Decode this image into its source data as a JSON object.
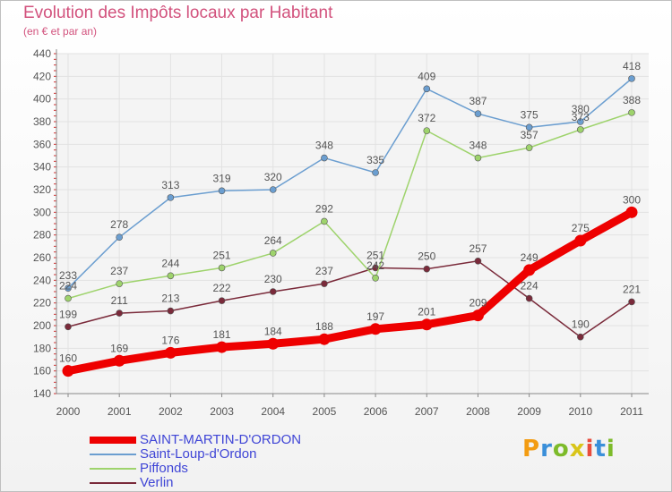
{
  "header": {
    "title": "Evolution des Impôts locaux par Habitant",
    "subtitle": "(en € et par an)"
  },
  "logo": {
    "letters": [
      "P",
      "r",
      "o",
      "x",
      "i",
      "t",
      "i"
    ],
    "colors": [
      "#f39c12",
      "#3a8fd9",
      "#7dbb2a",
      "#d9c51a",
      "#e84c3d",
      "#3a8fd9",
      "#7dbb2a"
    ]
  },
  "chart_data": {
    "type": "line",
    "title": "Evolution des Impôts locaux par Habitant",
    "subtitle": "(en € et par an)",
    "xlabel": "",
    "ylabel": "",
    "x": [
      "2000",
      "2001",
      "2002",
      "2003",
      "2004",
      "2005",
      "2006",
      "2007",
      "2008",
      "2009",
      "2010",
      "2011"
    ],
    "yticks": [
      140,
      160,
      180,
      200,
      220,
      240,
      260,
      280,
      300,
      320,
      340,
      360,
      380,
      400,
      420,
      440
    ],
    "ylim": [
      140,
      440
    ],
    "grid": true,
    "legend_position": "bottom-left",
    "series": [
      {
        "name": "SAINT-MARTIN-D'ORDON",
        "color": "#ee0000",
        "values": [
          160,
          169,
          176,
          181,
          184,
          188,
          197,
          201,
          209,
          249,
          275,
          300
        ],
        "labels": [
          "160",
          "169",
          "176",
          "181",
          "184",
          "188",
          "197",
          "201",
          "209",
          "249",
          "275",
          "300"
        ]
      },
      {
        "name": "Saint-Loup-d'Ordon",
        "color": "#6b9ed0",
        "values": [
          233,
          278,
          313,
          319,
          320,
          348,
          335,
          409,
          387,
          375,
          380,
          418
        ],
        "labels": [
          "233",
          "278",
          "313",
          "319",
          "320",
          "348",
          "335",
          "409",
          "387",
          "375",
          "380",
          "418"
        ]
      },
      {
        "name": "Piffonds",
        "color": "#9ed36c",
        "values": [
          224,
          237,
          244,
          251,
          264,
          292,
          242,
          372,
          348,
          357,
          373,
          388
        ],
        "labels": [
          "224",
          "237",
          "244",
          "251",
          "264",
          "292",
          "242",
          "372",
          "348",
          "357",
          "373",
          "388"
        ]
      },
      {
        "name": "Verlin",
        "color": "#7a2a3a",
        "values": [
          199,
          211,
          213,
          222,
          230,
          237,
          251,
          250,
          257,
          224,
          190,
          221
        ],
        "labels": [
          "199",
          "211",
          "213",
          "222",
          "230",
          "237",
          "251",
          "250",
          "257",
          "224",
          "190",
          "221"
        ]
      }
    ]
  }
}
